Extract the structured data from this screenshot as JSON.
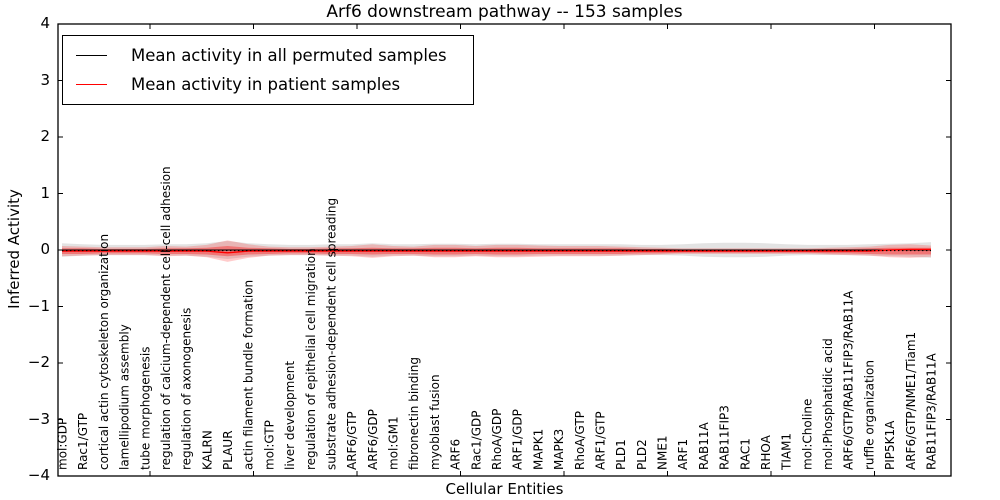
{
  "chart_data": {
    "type": "line",
    "title": "Arf6 downstream pathway -- 153 samples",
    "xlabel": "Cellular Entities",
    "ylabel": "Inferred Activity",
    "ylim": [
      -4,
      4
    ],
    "yticks": [
      4,
      3,
      2,
      1,
      0,
      -1,
      -2,
      -3,
      -4
    ],
    "ytick_labels": [
      "4",
      "3",
      "2",
      "1",
      "0",
      "−1",
      "−2",
      "−3",
      "−4"
    ],
    "grid": false,
    "legend_position": "upper left",
    "zero_line": {
      "value": -0.01,
      "style": "dotted",
      "color": "#000000"
    },
    "categories": [
      "mol:GDP",
      "Rac1/GTP",
      "cortical actin cytoskeleton organization",
      "lamellipodium assembly",
      "tube morphogenesis",
      "regulation of calcium-dependent cell-cell adhesion",
      "regulation of axonogenesis",
      "KALRN",
      "PLAUR",
      "actin filament bundle formation",
      "mol:GTP",
      "liver development",
      "regulation of epithelial cell migration",
      "substrate adhesion-dependent cell spreading",
      "ARF6/GTP",
      "ARF6/GDP",
      "mol:GM1",
      "fibronectin binding",
      "myoblast fusion",
      "ARF6",
      "Rac1/GDP",
      "RhoA/GDP",
      "ARF1/GDP",
      "MAPK1",
      "MAPK3",
      "RhoA/GTP",
      "ARF1/GTP",
      "PLD1",
      "PLD2",
      "NME1",
      "ARF1",
      "RAB11A",
      "RAB11FIP3",
      "RAC1",
      "RHOA",
      "TIAM1",
      "mol:Choline",
      "mol:Phosphatidic acid",
      "ARF6/GTP/RAB11FIP3/RAB11A",
      "ruffle organization",
      "PIP5K1A",
      "ARF6/GTP/NME1/Tiam1",
      "RAB11FIP3/RAB11A"
    ],
    "series": [
      {
        "name": "Mean activity in all permuted samples",
        "color": "#000000",
        "width": 1.1,
        "values": [
          0,
          0,
          0,
          0,
          0,
          0,
          0,
          0,
          0,
          0,
          0,
          0,
          0,
          0,
          0,
          0,
          0,
          0,
          0,
          0,
          0,
          0,
          0,
          0,
          0,
          0,
          0,
          0,
          0,
          0,
          0,
          0,
          0,
          0,
          0,
          0,
          0,
          0,
          0,
          0,
          0,
          0,
          0
        ]
      },
      {
        "name": "Mean activity in patient samples",
        "color": "#ff0000",
        "width": 1.4,
        "values": [
          -0.02,
          -0.02,
          -0.02,
          -0.02,
          -0.02,
          -0.02,
          -0.02,
          -0.02,
          -0.05,
          -0.02,
          -0.02,
          -0.02,
          -0.02,
          -0.02,
          -0.02,
          -0.02,
          -0.02,
          -0.02,
          -0.02,
          -0.02,
          -0.02,
          -0.02,
          -0.02,
          -0.02,
          -0.02,
          -0.02,
          -0.02,
          -0.02,
          -0.02,
          -0.02,
          -0.02,
          -0.02,
          -0.02,
          -0.02,
          -0.02,
          -0.02,
          -0.02,
          -0.02,
          -0.02,
          -0.02,
          0.0,
          0.01,
          0.01
        ]
      }
    ],
    "bands": [
      {
        "name": "permuted-samples-range",
        "color": "rgba(80,80,80,0.16)",
        "center": 0.0,
        "halfwidths": [
          0.12,
          0.1,
          0.09,
          0.09,
          0.09,
          0.1,
          0.1,
          0.12,
          0.16,
          0.12,
          0.1,
          0.09,
          0.09,
          0.1,
          0.1,
          0.12,
          0.1,
          0.1,
          0.11,
          0.11,
          0.1,
          0.11,
          0.11,
          0.1,
          0.1,
          0.1,
          0.1,
          0.1,
          0.09,
          0.09,
          0.1,
          0.12,
          0.13,
          0.13,
          0.12,
          0.1,
          0.09,
          0.09,
          0.09,
          0.1,
          0.11,
          0.12,
          0.14
        ]
      },
      {
        "name": "patient-samples-outer-band",
        "color": "rgba(255,0,0,0.20)",
        "center": -0.02,
        "halfwidths": [
          0.09,
          0.08,
          0.07,
          0.07,
          0.07,
          0.09,
          0.08,
          0.11,
          0.19,
          0.12,
          0.08,
          0.07,
          0.07,
          0.08,
          0.09,
          0.12,
          0.09,
          0.08,
          0.11,
          0.11,
          0.09,
          0.11,
          0.11,
          0.1,
          0.09,
          0.09,
          0.09,
          0.08,
          0.07,
          0.06,
          0.05,
          0.05,
          0.05,
          0.05,
          0.05,
          0.05,
          0.05,
          0.06,
          0.07,
          0.08,
          0.11,
          0.12,
          0.1
        ]
      },
      {
        "name": "patient-samples-inner-band",
        "color": "rgba(255,0,0,0.35)",
        "center": -0.02,
        "halfwidths": [
          0.05,
          0.05,
          0.04,
          0.04,
          0.04,
          0.05,
          0.05,
          0.06,
          0.09,
          0.06,
          0.05,
          0.04,
          0.04,
          0.05,
          0.05,
          0.06,
          0.05,
          0.05,
          0.06,
          0.06,
          0.05,
          0.06,
          0.06,
          0.05,
          0.05,
          0.05,
          0.05,
          0.05,
          0.04,
          0.04,
          0.03,
          0.03,
          0.03,
          0.03,
          0.03,
          0.03,
          0.03,
          0.04,
          0.04,
          0.05,
          0.06,
          0.06,
          0.06
        ]
      }
    ]
  },
  "legend": {
    "items": [
      {
        "label": "Mean activity in all permuted samples",
        "color": "#000000"
      },
      {
        "label": "Mean activity in patient samples",
        "color": "#ff0000"
      }
    ]
  }
}
